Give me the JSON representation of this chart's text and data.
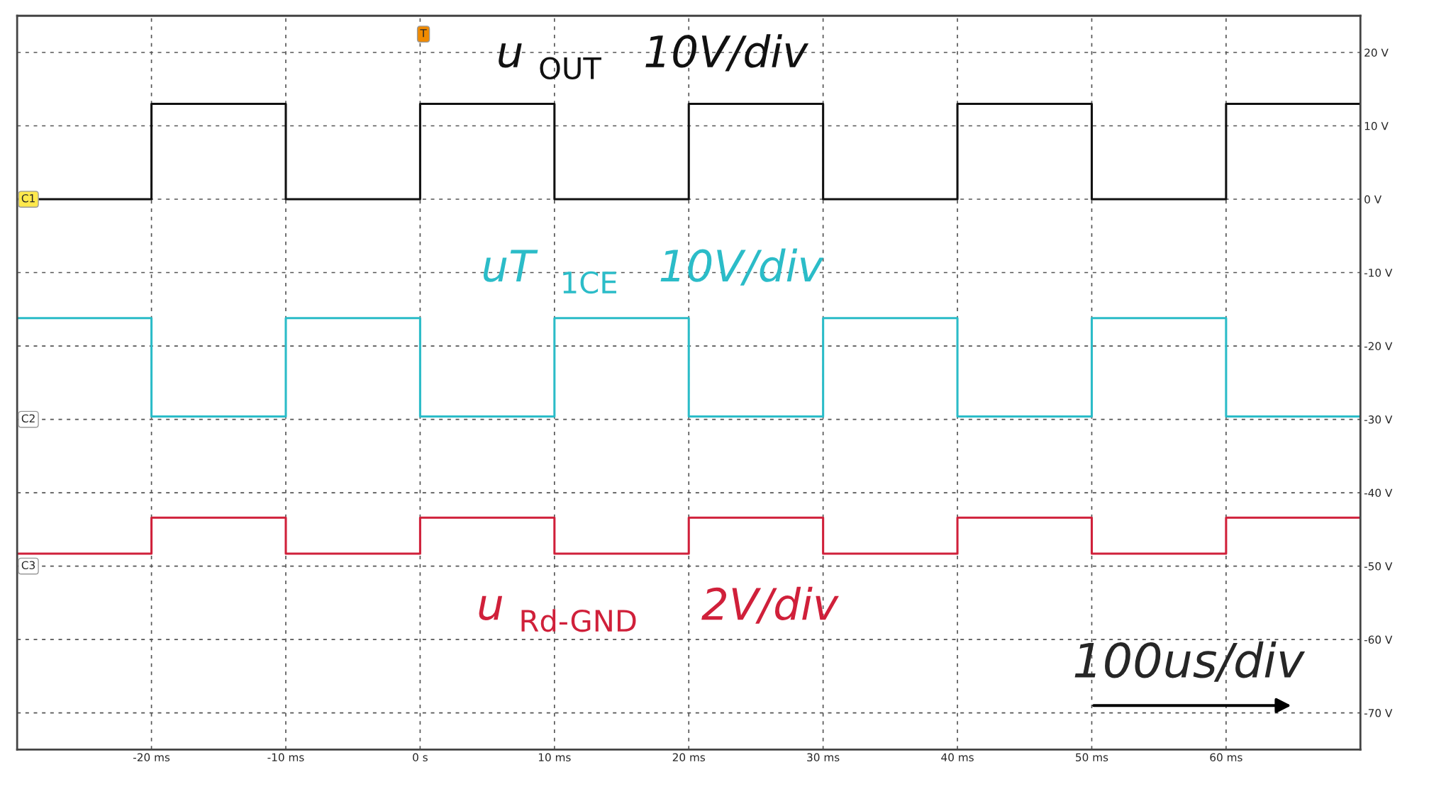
{
  "chart_data": {
    "type": "step",
    "x": [
      -30,
      -20,
      -10,
      0,
      10,
      20,
      30,
      40,
      50,
      60,
      70
    ],
    "series": [
      {
        "name": "u$_{OUT}$ 10V/div",
        "color": "#111111",
        "values": [
          0,
          13,
          0,
          13,
          0,
          13,
          0,
          13,
          0,
          13,
          13
        ]
      },
      {
        "name": "uT$_{1CE}$ 10V/div",
        "color": "#2bbcc8",
        "values": [
          -16.2,
          -29.6,
          -16.2,
          -29.6,
          -16.2,
          -29.6,
          -16.2,
          -29.6,
          -16.2,
          -29.6,
          -29.6
        ]
      },
      {
        "name": "u$_{Rd-GND}$ 2V/div",
        "color": "#d0203a",
        "values": [
          -48.3,
          -43.4,
          -48.3,
          -43.4,
          -48.3,
          -43.4,
          -48.3,
          -43.4,
          -48.3,
          -43.4,
          -43.4
        ]
      }
    ],
    "xlim": [
      -30,
      70
    ],
    "xticks": [
      {
        "value": -20,
        "label": "-20 ms"
      },
      {
        "value": -10,
        "label": "-10 ms"
      },
      {
        "value": 0,
        "label": "0 s"
      },
      {
        "value": 10,
        "label": "10 ms"
      },
      {
        "value": 20,
        "label": "20 ms"
      },
      {
        "value": 30,
        "label": "30 ms"
      },
      {
        "value": 40,
        "label": "40 ms"
      },
      {
        "value": 50,
        "label": "50 ms"
      },
      {
        "value": 60,
        "label": "60 ms"
      }
    ],
    "ylim": [
      -75,
      25
    ],
    "yticks": [
      {
        "value": 20,
        "label": "20 V"
      },
      {
        "value": 10,
        "label": "10 V"
      },
      {
        "value": 0,
        "label": "0 V"
      },
      {
        "value": -10,
        "label": "-10 V"
      },
      {
        "value": -20,
        "label": "-20 V"
      },
      {
        "value": -30,
        "label": "-30 V"
      },
      {
        "value": -40,
        "label": "-40 V"
      },
      {
        "value": -50,
        "label": "-50 V"
      },
      {
        "value": -60,
        "label": "-60 V"
      },
      {
        "value": -70,
        "label": "-70 V"
      }
    ],
    "grid": true,
    "annotations": [
      "C1",
      "C2",
      "C3",
      "T",
      "100us/div"
    ]
  }
}
